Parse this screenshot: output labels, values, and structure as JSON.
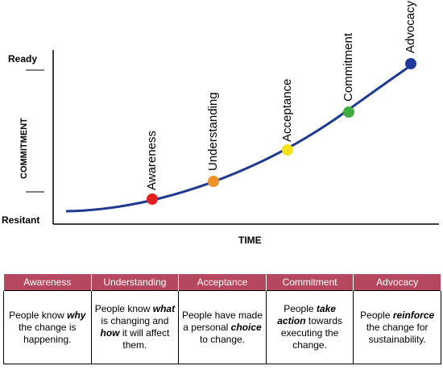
{
  "chart": {
    "y_top_label": "Ready",
    "y_bottom_label": "Resitant",
    "y_axis_label": "COMMITMENT",
    "x_axis_label": "TIME",
    "stages": [
      {
        "name": "Awareness",
        "color": "#e02020"
      },
      {
        "name": "Understanding",
        "color": "#f0922a"
      },
      {
        "name": "Acceptance",
        "color": "#f2e21c"
      },
      {
        "name": "Commitment",
        "color": "#3fae3f"
      },
      {
        "name": "Advocacy",
        "color": "#1f3a9a"
      }
    ],
    "curve_color": "#1f3a8f"
  },
  "table": {
    "headers": [
      "Awareness",
      "Understanding",
      "Acceptance",
      "Commitment",
      "Advocacy"
    ],
    "header_color": "#b5475f",
    "rows": [
      [
        [
          {
            "t": "People know "
          },
          {
            "t": "why",
            "b": true
          },
          {
            "t": "  the change is happening."
          }
        ],
        [
          {
            "t": "People know "
          },
          {
            "t": "what",
            "b": true
          },
          {
            "t": " is changing and "
          },
          {
            "t": "how",
            "b": true
          },
          {
            "t": " it will affect them."
          }
        ],
        [
          {
            "t": "People have made a personal "
          },
          {
            "t": "choice",
            "b": true
          },
          {
            "t": " to change."
          }
        ],
        [
          {
            "t": "People "
          },
          {
            "t": "take action",
            "b": true
          },
          {
            "t": " towards executing the change."
          }
        ],
        [
          {
            "t": "People "
          },
          {
            "t": "reinforce",
            "b": true
          },
          {
            "t": " the change for sustainability."
          }
        ]
      ]
    ]
  }
}
